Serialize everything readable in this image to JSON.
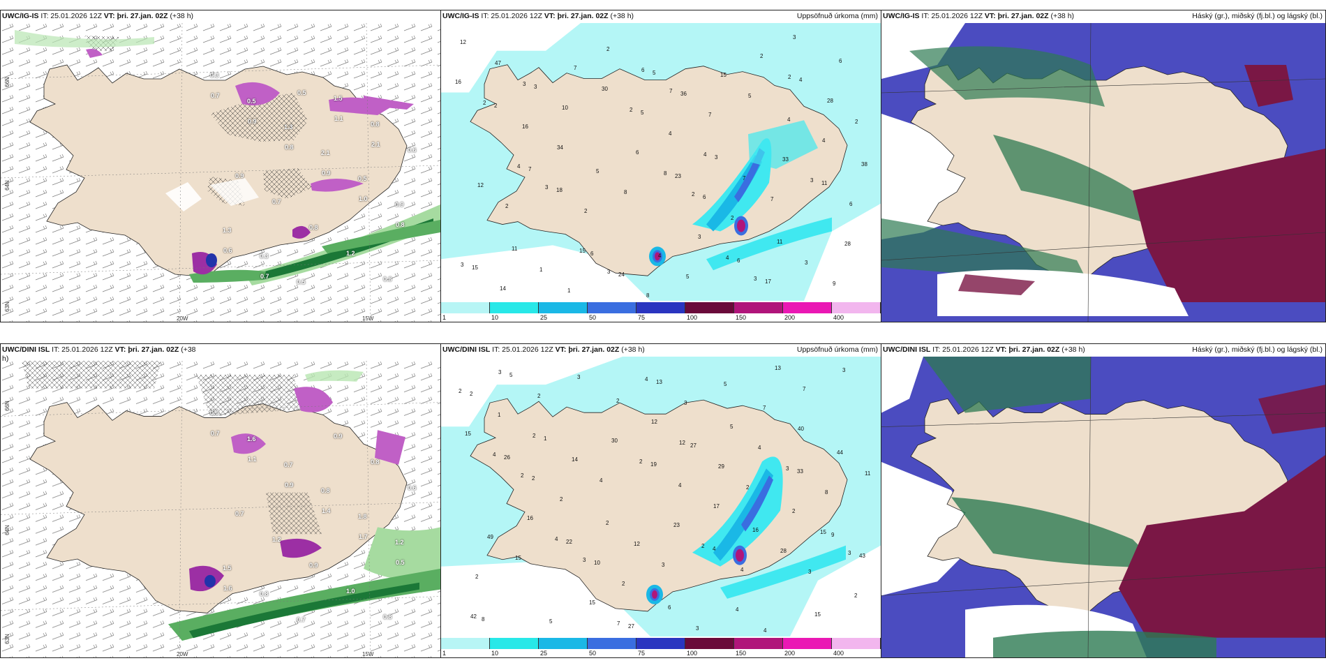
{
  "panels": {
    "p1": {
      "model": "UWC/IG-IS",
      "it": "IT: 25.01.2026 12Z",
      "vt": "VT: þri. 27.jan. 02Z",
      "lead": "(+38 h)",
      "right_title": ""
    },
    "p2": {
      "model": "UWC/IG-IS",
      "it": "IT: 25.01.2026 12Z",
      "vt": "VT: þri. 27.jan. 02Z",
      "lead": "(+38 h)",
      "right_title": "Uppsöfnuð úrkoma (mm)"
    },
    "p3": {
      "model": "UWC/IG-IS",
      "it": "IT: 25.01.2026 12Z",
      "vt": "VT: þri. 27.jan. 02Z",
      "lead": "(+38 h)",
      "right_title": "Háský (gr.), miðský (fj.bl.) og lágský (bl.)"
    },
    "p4": {
      "model": "UWC/DINI ISL",
      "it": "IT: 25.01.2026 12Z",
      "vt": "VT: þri. 27.jan. 02Z",
      "lead": "(+38",
      "lead2": "h)",
      "right_title": ""
    },
    "p5": {
      "model": "UWC/DINI ISL",
      "it": "IT: 25.01.2026 12Z",
      "vt": "VT: þri. 27.jan. 02Z",
      "lead": "(+38 h)",
      "right_title": "Uppsöfnuð úrkoma (mm)"
    },
    "p6": {
      "model": "UWC/DINI ISL",
      "it": "IT: 25.01.2026 12Z",
      "vt": "VT: þri. 27.jan. 02Z",
      "lead": "(+38 h)",
      "right_title": "Háský (gr.), miðský (fj.bl.) og lágský (bl.)"
    }
  },
  "axes": {
    "lat66": "66N",
    "lat64": "64N",
    "lat63": "63N",
    "lon20": "20W",
    "lon15": "15W"
  },
  "colorbar": {
    "ticks": [
      "1",
      "10",
      "25",
      "50",
      "75",
      "100",
      "150",
      "200",
      "400"
    ],
    "colors": [
      "#b7f5f5",
      "#28e8e8",
      "#1ab8e6",
      "#3a6ee0",
      "#2a35c0",
      "#6a0a3a",
      "#b0157a",
      "#ea18b4",
      "#f2b6ee"
    ]
  },
  "colors": {
    "land": "#eedfcc",
    "sea": "#ffffff",
    "precip_light": "#b4f6f6",
    "precip_mid": "#30e0ea",
    "cloud_high": "#2d7a52",
    "cloud_mid": "#4b4cc0",
    "cloud_low": "#7a1745"
  },
  "precip_ig": [
    "2",
    "4",
    "2",
    "3",
    "2",
    "2",
    "1",
    "2",
    "2",
    "3",
    "12",
    "16",
    "2",
    "8",
    "7",
    "7",
    "9",
    "2",
    "3",
    "3",
    "7",
    "4",
    "6",
    "14",
    "10",
    "8",
    "5",
    "5",
    "3",
    "3",
    "3",
    "5",
    "6",
    "17",
    "28",
    "12",
    "1",
    "30",
    "8",
    "4",
    "2",
    "2",
    "18",
    "24",
    "36",
    "7",
    "3",
    "16",
    "4",
    "15",
    "6",
    "4",
    "11",
    "15",
    "3",
    "5",
    "4",
    "15",
    "33",
    "28",
    "47",
    "34",
    "23",
    "6",
    "4",
    "38",
    "11",
    "7",
    "6",
    "3",
    "2",
    "4",
    "7",
    "6",
    "5",
    "3",
    "11",
    "6"
  ],
  "precip_dini": [
    "1",
    "2",
    "2",
    "3",
    "2",
    "3",
    "2",
    "2",
    "3",
    "4",
    "7",
    "8",
    "2",
    "2",
    "4",
    "3",
    "5",
    "3",
    "3",
    "3",
    "2",
    "4",
    "4",
    "7",
    "11",
    "15",
    "3",
    "2",
    "2",
    "4",
    "2",
    "2",
    "10",
    "13",
    "29",
    "28",
    "3",
    "4",
    "4",
    "7",
    "12",
    "33",
    "43",
    "5",
    "14",
    "12",
    "3",
    "4",
    "15",
    "42",
    "2",
    "19",
    "4",
    "13",
    "44",
    "49",
    "5",
    "30",
    "23",
    "4",
    "40",
    "26",
    "22",
    "27",
    "27",
    "16",
    "15",
    "15",
    "16",
    "15",
    "12",
    "17",
    "9",
    "8",
    "1",
    "2",
    "6",
    "5",
    "2",
    "2"
  ],
  "wind_ig_vals": [
    "0.3",
    "0.5",
    "1.3",
    "2.1",
    "0.5",
    "0.9",
    "1.3",
    "0.3",
    "0.5",
    "1.5",
    "0.8",
    "0.6",
    "0.9",
    "0.7",
    "0.8",
    "1.2",
    "0.8",
    "0.7",
    "0.9",
    "0.8",
    "0.9",
    "1.0",
    "0.8",
    "0.6",
    "0.7",
    "0.5",
    "1.1",
    "2.1"
  ],
  "wind_dini_vals": [
    "0.9",
    "1.6",
    "0.7",
    "0.8",
    "1.8",
    "1.2",
    "1.5",
    "0.8",
    "0.7",
    "0.9",
    "0.8",
    "0.6",
    "0.7",
    "1.2",
    "0.9",
    "1.0",
    "0.8",
    "0.7",
    "1.1",
    "0.9",
    "1.4",
    "1.7",
    "0.5",
    "1.6"
  ]
}
